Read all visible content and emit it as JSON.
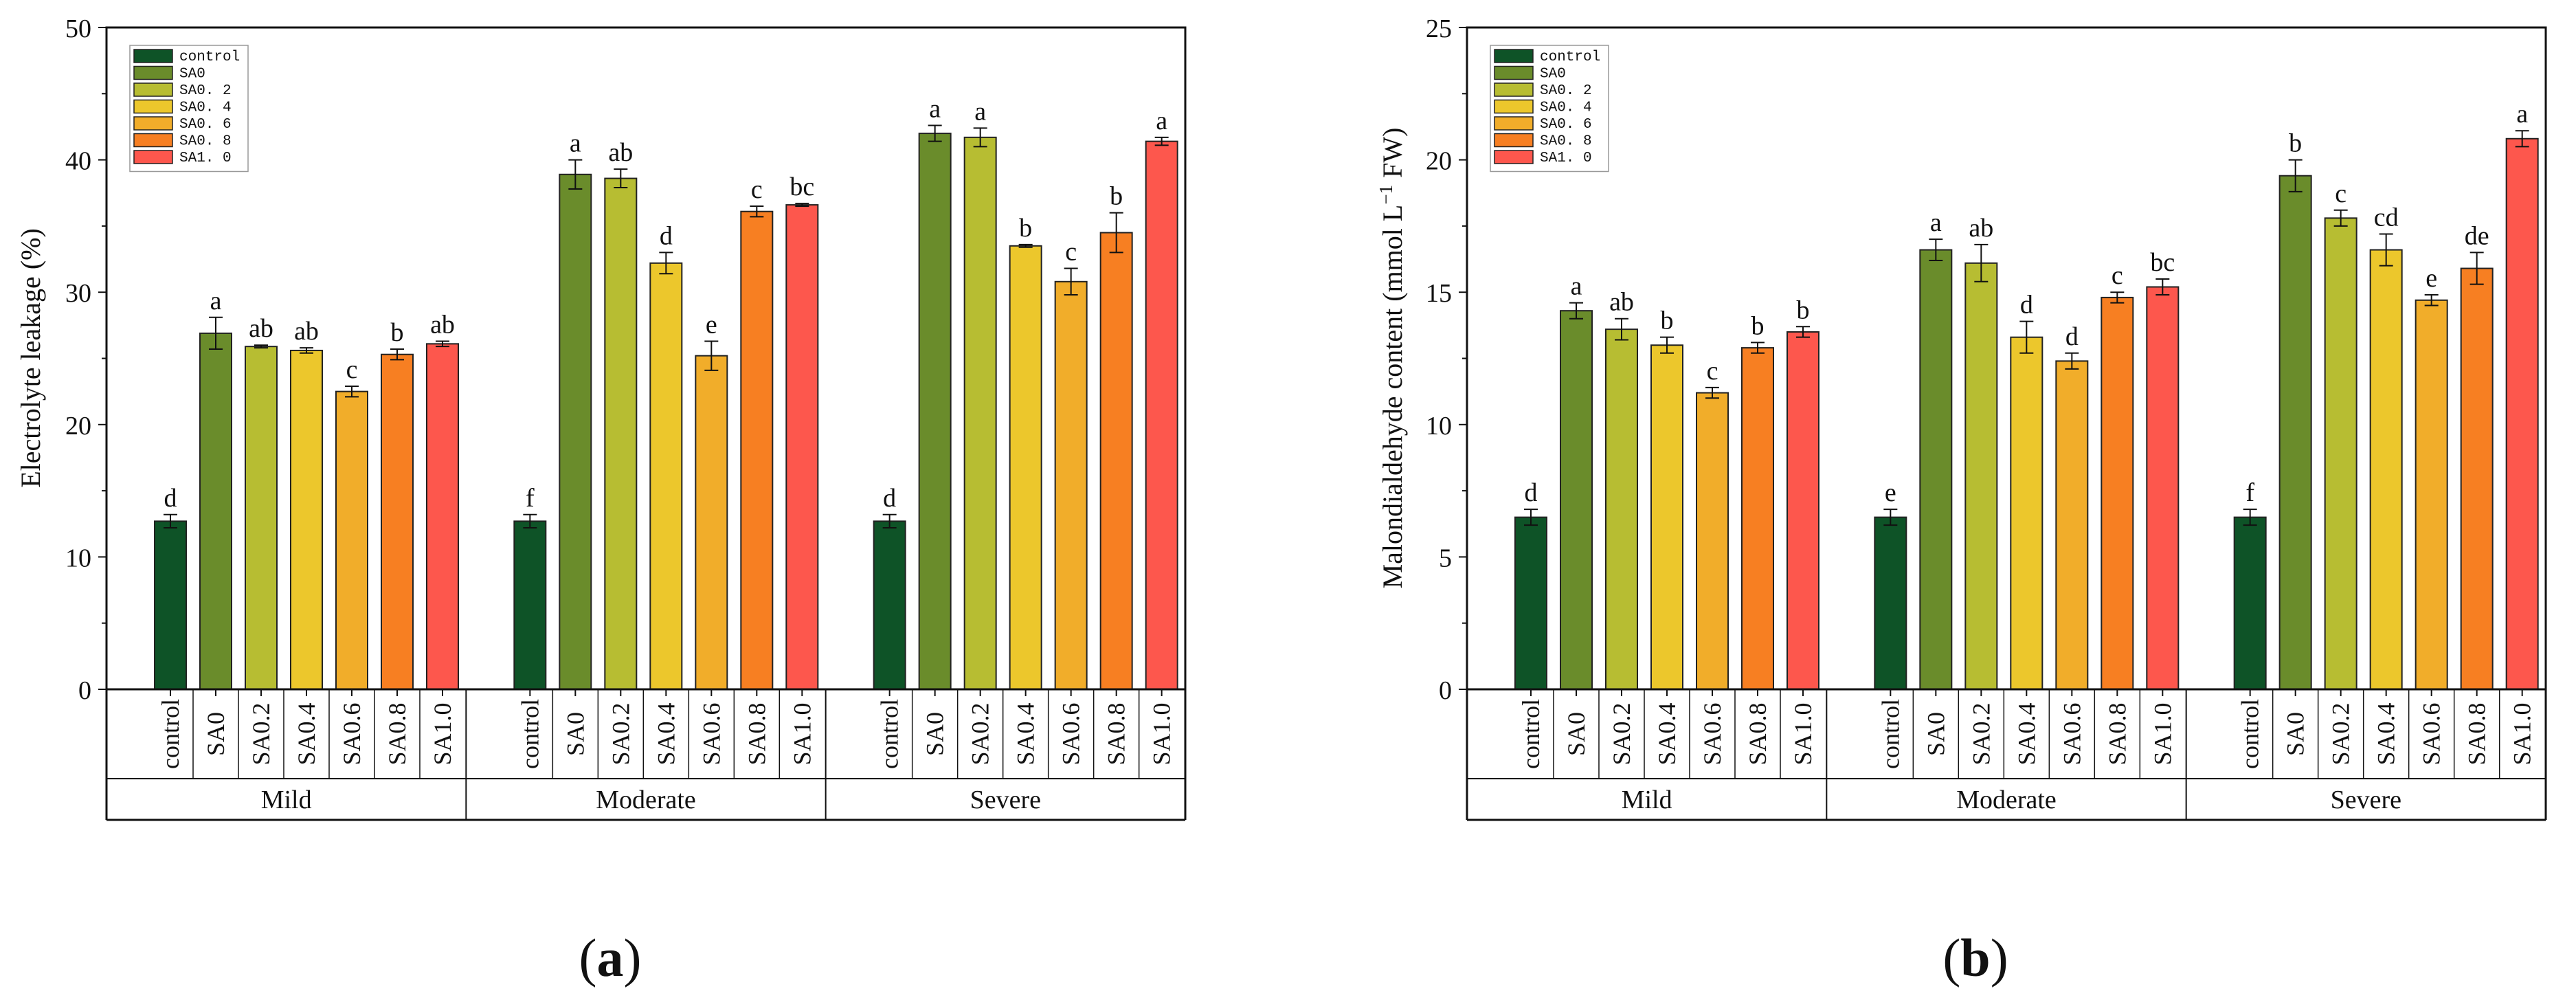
{
  "colors": {
    "control": "#0e5327",
    "SA0": "#6a8c2b",
    "SA0.2": "#b7bd32",
    "SA0.4": "#ecc72c",
    "SA0.6": "#f1ad2a",
    "SA0.8": "#f77f22",
    "SA1.0": "#fd574d"
  },
  "legend_labels": [
    "control",
    "SA0",
    "SA0. 2",
    "SA0. 4",
    "SA0. 6",
    "SA0. 8",
    "SA1. 0"
  ],
  "panel_labels": [
    {
      "open": "(",
      "letter": "a",
      "close": ")"
    },
    {
      "open": "(",
      "letter": "b",
      "close": ")"
    }
  ],
  "chart_data": [
    {
      "type": "bar",
      "title": "",
      "ylabel": "Electrolyte leakage (%)",
      "xlabel": "",
      "ylim": [
        0,
        50
      ],
      "yticks": [
        "0",
        "10",
        "20",
        "30",
        "40",
        "50"
      ],
      "groups": [
        "Mild",
        "Moderate",
        "Severe"
      ],
      "categories": [
        "control",
        "SA0",
        "SA0.2",
        "SA0.4",
        "SA0.6",
        "SA0.8",
        "SA1.0"
      ],
      "series": [
        {
          "name": "Mild",
          "values": [
            12.7,
            26.9,
            25.9,
            25.6,
            22.5,
            25.3,
            26.1
          ],
          "errors": [
            0.5,
            1.2,
            0.1,
            0.2,
            0.4,
            0.4,
            0.2
          ],
          "letters": [
            "d",
            "a",
            "ab",
            "ab",
            "c",
            "b",
            "ab"
          ]
        },
        {
          "name": "Moderate",
          "values": [
            12.7,
            38.9,
            38.6,
            32.2,
            25.2,
            36.1,
            36.6
          ],
          "errors": [
            0.5,
            1.1,
            0.7,
            0.8,
            1.1,
            0.4,
            0.1
          ],
          "letters": [
            "f",
            "a",
            "ab",
            "d",
            "e",
            "c",
            "bc"
          ]
        },
        {
          "name": "Severe",
          "values": [
            12.7,
            42.0,
            41.7,
            33.5,
            30.8,
            34.5,
            41.4
          ],
          "errors": [
            0.5,
            0.6,
            0.7,
            0.1,
            1.0,
            1.5,
            0.3
          ],
          "letters": [
            "d",
            "a",
            "a",
            "b",
            "c",
            "b",
            "a"
          ]
        }
      ]
    },
    {
      "type": "bar",
      "title": "",
      "ylabel_main": "Malondialdehyde content (mmol L",
      "ylabel_sup": "−1",
      "ylabel_end": " FW)",
      "xlabel": "",
      "ylim": [
        0,
        25
      ],
      "yticks": [
        "0",
        "5",
        "10",
        "15",
        "20",
        "25"
      ],
      "groups": [
        "Mild",
        "Moderate",
        "Severe"
      ],
      "categories": [
        "control",
        "SA0",
        "SA0.2",
        "SA0.4",
        "SA0.6",
        "SA0.8",
        "SA1.0"
      ],
      "series": [
        {
          "name": "Mild",
          "values": [
            6.5,
            14.3,
            13.6,
            13.0,
            11.2,
            12.9,
            13.5
          ],
          "errors": [
            0.3,
            0.3,
            0.4,
            0.3,
            0.2,
            0.2,
            0.2
          ],
          "letters": [
            "d",
            "a",
            "ab",
            "b",
            "c",
            "b",
            "b"
          ]
        },
        {
          "name": "Moderate",
          "values": [
            6.5,
            16.6,
            16.1,
            13.3,
            12.4,
            14.8,
            15.2
          ],
          "errors": [
            0.3,
            0.4,
            0.7,
            0.6,
            0.3,
            0.2,
            0.3
          ],
          "letters": [
            "e",
            "a",
            "ab",
            "d",
            "d",
            "c",
            "bc"
          ]
        },
        {
          "name": "Severe",
          "values": [
            6.5,
            19.4,
            17.8,
            16.6,
            14.7,
            15.9,
            20.8
          ],
          "errors": [
            0.3,
            0.6,
            0.3,
            0.6,
            0.2,
            0.6,
            0.3
          ],
          "letters": [
            "f",
            "b",
            "c",
            "cd",
            "e",
            "de",
            "a"
          ]
        }
      ]
    }
  ]
}
